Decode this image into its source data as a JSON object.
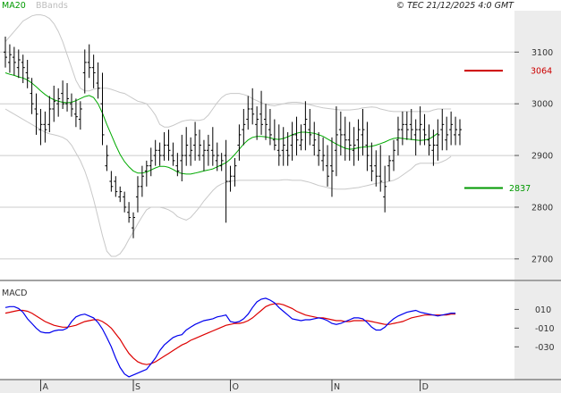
{
  "legend": {
    "ma_label": "MA20",
    "bb_label": "BBands",
    "copyright": "© TEC 21/12/2025 4:0 GMT"
  },
  "levels": {
    "resistance": 3064,
    "support": 2837
  },
  "macd_title": "MACD",
  "colors": {
    "price": "#000000",
    "ma": "#00aa00",
    "bb": "#c8c8c8",
    "resistance": "#cc0000",
    "support": "#009900",
    "macd": "#0000ee",
    "signal": "#dd0000",
    "grid": "#cccccc",
    "axis_panel": "#ececec"
  },
  "chart_data": [
    {
      "type": "ohlc",
      "title": "",
      "ylim": [
        2660,
        3180
      ],
      "y_ticks": [
        2700,
        2800,
        2900,
        3000,
        3100
      ],
      "x_ticks": [
        "A",
        "S",
        "O",
        "N",
        "D"
      ],
      "x_tick_index": [
        8,
        29,
        51,
        74,
        94
      ],
      "high": [
        3130,
        3115,
        3110,
        3105,
        3095,
        3085,
        3050,
        3020,
        2990,
        2985,
        3015,
        3035,
        3030,
        3045,
        3040,
        3020,
        3010,
        3005,
        3105,
        3115,
        3095,
        3080,
        3060,
        2920,
        2870,
        2860,
        2840,
        2830,
        2810,
        2790,
        2860,
        2880,
        2890,
        2915,
        2930,
        2925,
        2945,
        2950,
        2925,
        2905,
        2940,
        2955,
        2935,
        2965,
        2950,
        2930,
        2940,
        2955,
        2925,
        2905,
        2930,
        2880,
        2895,
        2960,
        2990,
        3015,
        3030,
        2995,
        3025,
        3000,
        2990,
        2970,
        2960,
        2955,
        2945,
        2965,
        2975,
        2960,
        3005,
        2990,
        2965,
        2945,
        2935,
        2920,
        2935,
        2995,
        2985,
        2975,
        2965,
        2955,
        2970,
        2990,
        2965,
        2925,
        2910,
        2920,
        2880,
        2900,
        2930,
        2975,
        2985,
        2985,
        2990,
        2970,
        2995,
        2980,
        2960,
        2950,
        2970,
        2990,
        2975,
        2985,
        2975,
        2970
      ],
      "low": [
        3070,
        3060,
        3055,
        3050,
        3040,
        3030,
        2980,
        2940,
        2920,
        2925,
        2945,
        2965,
        2975,
        2990,
        2985,
        2975,
        2955,
        2950,
        3020,
        3050,
        3030,
        3010,
        2920,
        2870,
        2830,
        2820,
        2810,
        2790,
        2770,
        2740,
        2790,
        2820,
        2840,
        2860,
        2880,
        2880,
        2890,
        2890,
        2880,
        2860,
        2850,
        2880,
        2880,
        2890,
        2890,
        2870,
        2880,
        2880,
        2870,
        2870,
        2770,
        2830,
        2840,
        2890,
        2920,
        2950,
        2960,
        2930,
        2940,
        2930,
        2920,
        2910,
        2880,
        2880,
        2880,
        2890,
        2900,
        2910,
        2910,
        2920,
        2900,
        2880,
        2870,
        2840,
        2820,
        2860,
        2900,
        2890,
        2890,
        2880,
        2890,
        2900,
        2870,
        2850,
        2840,
        2830,
        2790,
        2850,
        2870,
        2900,
        2920,
        2930,
        2930,
        2900,
        2920,
        2920,
        2900,
        2880,
        2890,
        2910,
        2910,
        2920,
        2920,
        2920
      ],
      "open": [
        3100,
        3080,
        3090,
        3070,
        3080,
        3060,
        3020,
        2990,
        2950,
        2960,
        2960,
        2990,
        3000,
        3020,
        3000,
        3000,
        2980,
        2970,
        3060,
        3080,
        3070,
        3040,
        3000,
        2880,
        2850,
        2850,
        2820,
        2820,
        2790,
        2760,
        2820,
        2840,
        2870,
        2880,
        2900,
        2910,
        2900,
        2920,
        2900,
        2880,
        2890,
        2900,
        2900,
        2920,
        2900,
        2900,
        2910,
        2910,
        2890,
        2880,
        2900,
        2850,
        2860,
        2920,
        2950,
        2970,
        2990,
        2960,
        2980,
        2970,
        2950,
        2930,
        2910,
        2910,
        2910,
        2920,
        2940,
        2920,
        2960,
        2950,
        2920,
        2900,
        2890,
        2880,
        2880,
        2910,
        2950,
        2940,
        2930,
        2910,
        2930,
        2940,
        2920,
        2880,
        2880,
        2860,
        2820,
        2880,
        2890,
        2930,
        2950,
        2960,
        2960,
        2940,
        2950,
        2950,
        2930,
        2910,
        2920,
        2950,
        2930,
        2950,
        2940,
        2940
      ],
      "close": [
        3090,
        3095,
        3080,
        3085,
        3070,
        3050,
        3000,
        2980,
        2960,
        2950,
        2990,
        3005,
        3010,
        3000,
        3010,
        2990,
        2975,
        2990,
        3080,
        3070,
        3060,
        3030,
        2940,
        2900,
        2840,
        2830,
        2830,
        2800,
        2780,
        2780,
        2840,
        2860,
        2880,
        2890,
        2910,
        2900,
        2920,
        2910,
        2890,
        2870,
        2900,
        2920,
        2910,
        2940,
        2920,
        2910,
        2920,
        2900,
        2900,
        2890,
        2850,
        2860,
        2880,
        2940,
        2960,
        2990,
        2980,
        2970,
        2960,
        2960,
        2940,
        2920,
        2900,
        2920,
        2900,
        2940,
        2930,
        2930,
        2970,
        2940,
        2930,
        2910,
        2900,
        2860,
        2870,
        2940,
        2940,
        2930,
        2920,
        2920,
        2950,
        2950,
        2900,
        2870,
        2860,
        2850,
        2840,
        2890,
        2910,
        2950,
        2960,
        2950,
        2950,
        2950,
        2960,
        2940,
        2920,
        2920,
        2940,
        2960,
        2940,
        2960,
        2950,
        2950
      ],
      "ma20": [
        3060,
        3057,
        3055,
        3052,
        3050,
        3046,
        3040,
        3033,
        3025,
        3018,
        3012,
        3008,
        3005,
        3003,
        3002,
        3003,
        3006,
        3010,
        3014,
        3016,
        3012,
        3000,
        2982,
        2960,
        2940,
        2920,
        2902,
        2888,
        2878,
        2870,
        2866,
        2866,
        2868,
        2872,
        2876,
        2879,
        2879,
        2877,
        2873,
        2868,
        2865,
        2864,
        2864,
        2866,
        2868,
        2870,
        2872,
        2874,
        2878,
        2882,
        2886,
        2893,
        2902,
        2912,
        2922,
        2930,
        2935,
        2937,
        2937,
        2936,
        2934,
        2932,
        2931,
        2933,
        2936,
        2940,
        2943,
        2945,
        2945,
        2944,
        2943,
        2940,
        2937,
        2932,
        2927,
        2922,
        2918,
        2914,
        2912,
        2913,
        2915,
        2916,
        2917,
        2918,
        2920,
        2923,
        2926,
        2930,
        2933,
        2934,
        2933,
        2932,
        2931,
        2930,
        2929,
        2930,
        2932,
        2937,
        2943
      ],
      "bb_upper": [
        3120,
        3130,
        3140,
        3150,
        3160,
        3165,
        3170,
        3172,
        3172,
        3170,
        3165,
        3155,
        3140,
        3120,
        3095,
        3070,
        3045,
        3030,
        3025,
        3025,
        3028,
        3030,
        3030,
        3030,
        3028,
        3025,
        3022,
        3020,
        3015,
        3010,
        3005,
        3003,
        3000,
        2990,
        2978,
        2960,
        2955,
        2955,
        2958,
        2962,
        2966,
        2968,
        2969,
        2968,
        2968,
        2970,
        2978,
        2990,
        3002,
        3012,
        3018,
        3020,
        3020,
        3020,
        3018,
        3015,
        3010,
        3006,
        3002,
        2999,
        2997,
        2996,
        2998,
        3000,
        3002,
        3003,
        3003,
        3002,
        3000,
        2998,
        2996,
        2994,
        2992,
        2991,
        2990,
        2989,
        2988,
        2988,
        2988,
        2989,
        2990,
        2992,
        2993,
        2994,
        2993,
        2990,
        2988,
        2986,
        2985,
        2985,
        2985,
        2985,
        2985,
        2985,
        2985,
        2985,
        2985,
        2988,
        2990,
        2990,
        2990,
        2990
      ],
      "bb_lower": [
        2990,
        2985,
        2980,
        2975,
        2970,
        2965,
        2960,
        2955,
        2950,
        2945,
        2942,
        2940,
        2938,
        2935,
        2930,
        2920,
        2905,
        2890,
        2870,
        2845,
        2815,
        2780,
        2745,
        2715,
        2705,
        2705,
        2710,
        2722,
        2738,
        2752,
        2768,
        2782,
        2795,
        2800,
        2800,
        2800,
        2798,
        2795,
        2790,
        2782,
        2778,
        2775,
        2780,
        2790,
        2800,
        2812,
        2822,
        2832,
        2840,
        2845,
        2848,
        2850,
        2851,
        2852,
        2852,
        2852,
        2852,
        2852,
        2852,
        2852,
        2852,
        2852,
        2852,
        2853,
        2853,
        2852,
        2852,
        2852,
        2850,
        2848,
        2845,
        2842,
        2840,
        2838,
        2836,
        2835,
        2835,
        2835,
        2836,
        2837,
        2838,
        2840,
        2842,
        2844,
        2846,
        2847,
        2848,
        2850,
        2852,
        2856,
        2862,
        2868,
        2874,
        2882,
        2885,
        2885,
        2885,
        2885,
        2885,
        2888,
        2892,
        2898
      ]
    },
    {
      "type": "line",
      "title": "MACD",
      "ylim": [
        -65,
        40
      ],
      "y_ticks": [
        10,
        -10,
        -30
      ],
      "y_tick_labels": [
        "010",
        "-010",
        "-030"
      ],
      "series": [
        {
          "values": [
            12,
            13,
            13,
            11,
            7,
            0,
            -5,
            -10,
            -14,
            -15,
            -15,
            -13,
            -12,
            -12,
            -10,
            -3,
            2,
            4,
            5,
            3,
            1,
            -4,
            -11,
            -20,
            -30,
            -42,
            -52,
            -59,
            -62,
            -60,
            -58,
            -56,
            -54,
            -48,
            -42,
            -34,
            -28,
            -24,
            -20,
            -18,
            -17,
            -12,
            -9,
            -6,
            -4,
            -2,
            -1,
            0,
            2,
            3,
            4,
            -3,
            -4,
            -3,
            0,
            5,
            12,
            18,
            21,
            22,
            20,
            17,
            12,
            8,
            4,
            0,
            -1,
            -2,
            -1,
            -1,
            0,
            1,
            0,
            -2,
            -5,
            -6,
            -5,
            -3,
            -1,
            1,
            1,
            0,
            -4,
            -9,
            -12,
            -12,
            -9,
            -4,
            0,
            3,
            5,
            7,
            8,
            9,
            7,
            6,
            5,
            4,
            3,
            4,
            5,
            6,
            6
          ]
        },
        {
          "values": [
            6,
            7,
            8,
            9,
            9,
            8,
            6,
            3,
            0,
            -3,
            -5,
            -7,
            -8,
            -9,
            -9,
            -8,
            -7,
            -5,
            -3,
            -2,
            -1,
            -1,
            -3,
            -6,
            -10,
            -16,
            -22,
            -30,
            -37,
            -42,
            -46,
            -48,
            -49,
            -48,
            -46,
            -43,
            -40,
            -37,
            -34,
            -31,
            -28,
            -26,
            -23,
            -21,
            -19,
            -17,
            -15,
            -13,
            -11,
            -9,
            -7,
            -6,
            -5,
            -5,
            -4,
            -2,
            1,
            5,
            9,
            13,
            15,
            16,
            16,
            15,
            13,
            11,
            8,
            6,
            4,
            3,
            2,
            1,
            1,
            0,
            -1,
            -2,
            -2,
            -3,
            -3,
            -2,
            -2,
            -2,
            -2,
            -3,
            -4,
            -5,
            -6,
            -6,
            -5,
            -4,
            -3,
            -1,
            1,
            2,
            3,
            4,
            4,
            4,
            4,
            4,
            4,
            5,
            5
          ]
        }
      ]
    }
  ]
}
